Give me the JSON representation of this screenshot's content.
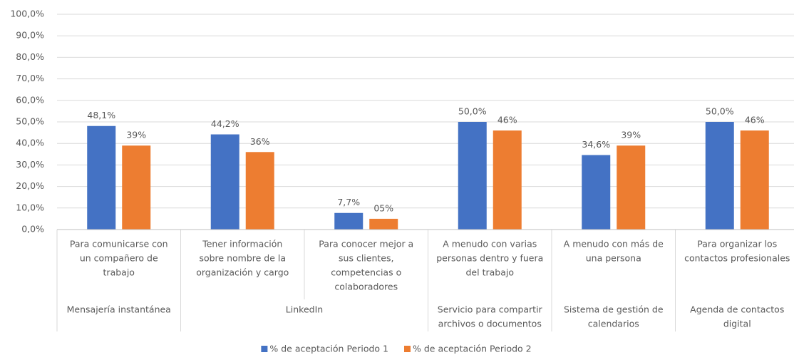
{
  "chart_data": {
    "type": "bar",
    "categories": [
      [
        "Para comunicarse con",
        "un compañero de",
        "trabajo"
      ],
      [
        "Tener información",
        "sobre nombre de la",
        "organización y cargo"
      ],
      [
        "Para conocer mejor a",
        "sus clientes,",
        "competencias o",
        "colaboradores"
      ],
      [
        "A menudo con varias",
        "personas dentro y fuera",
        "del trabajo"
      ],
      [
        "A menudo con más de",
        "una persona"
      ],
      [
        "Para organizar los",
        "contactos profesionales"
      ]
    ],
    "groups": [
      {
        "label": [
          "Mensajería instantánea"
        ],
        "span": 1
      },
      {
        "label": [
          "LinkedIn"
        ],
        "span": 2
      },
      {
        "label": [
          "Servicio para compartir",
          "archivos o documentos"
        ],
        "span": 1
      },
      {
        "label": [
          "Sistema de gestión de",
          "calendarios"
        ],
        "span": 1
      },
      {
        "label": [
          "Agenda de contactos",
          "digital"
        ],
        "span": 1
      }
    ],
    "series": [
      {
        "name": "% de aceptación Periodo 1",
        "color": "#4472c4",
        "values": [
          48.1,
          44.2,
          7.7,
          50.0,
          34.6,
          50.0
        ],
        "value_labels": [
          "48,1%",
          "44,2%",
          "7,7%",
          "50,0%",
          "34,6%",
          "50,0%"
        ]
      },
      {
        "name": "% de aceptación Periodo 2",
        "color": "#ed7d31",
        "values": [
          39,
          36,
          5,
          46,
          39,
          46
        ],
        "value_labels": [
          "39%",
          "36%",
          "05%",
          "46%",
          "39%",
          "46%"
        ]
      }
    ],
    "ylim": [
      0,
      100
    ],
    "yticks": [
      {
        "value": 0,
        "label": "0,0%"
      },
      {
        "value": 10,
        "label": "10,0%"
      },
      {
        "value": 20,
        "label": "20,0%"
      },
      {
        "value": 30,
        "label": "30,0%"
      },
      {
        "value": 40,
        "label": "40,0%"
      },
      {
        "value": 50,
        "label": "50,0%"
      },
      {
        "value": 60,
        "label": "60,0%"
      },
      {
        "value": 70,
        "label": "70,0%"
      },
      {
        "value": 80,
        "label": "80,0%"
      },
      {
        "value": 90,
        "label": "90,0%"
      },
      {
        "value": 100,
        "label": "100,0%"
      }
    ],
    "grid": true,
    "legend": "bottom"
  }
}
